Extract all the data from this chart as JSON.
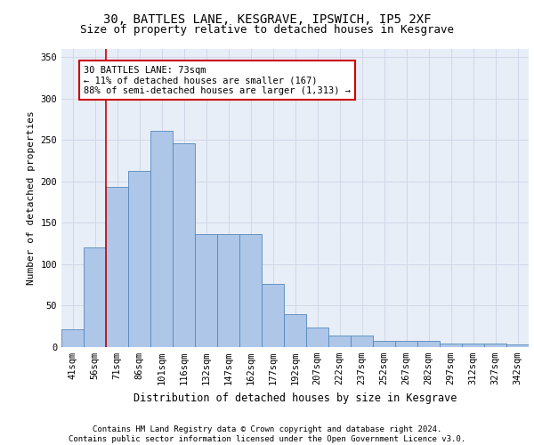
{
  "title1": "30, BATTLES LANE, KESGRAVE, IPSWICH, IP5 2XF",
  "title2": "Size of property relative to detached houses in Kesgrave",
  "xlabel": "Distribution of detached houses by size in Kesgrave",
  "ylabel": "Number of detached properties",
  "categories": [
    "41sqm",
    "56sqm",
    "71sqm",
    "86sqm",
    "101sqm",
    "116sqm",
    "132sqm",
    "147sqm",
    "162sqm",
    "177sqm",
    "192sqm",
    "207sqm",
    "222sqm",
    "237sqm",
    "252sqm",
    "267sqm",
    "282sqm",
    "297sqm",
    "312sqm",
    "327sqm",
    "342sqm"
  ],
  "values": [
    22,
    120,
    193,
    213,
    261,
    246,
    136,
    136,
    136,
    76,
    40,
    24,
    14,
    14,
    8,
    7,
    7,
    4,
    4,
    4,
    3
  ],
  "bar_color": "#aec6e8",
  "bar_edge_color": "#5588bb",
  "annotation_box_text": "30 BATTLES LANE: 73sqm\n← 11% of detached houses are smaller (167)\n88% of semi-detached houses are larger (1,313) →",
  "annotation_box_color": "#ffffff",
  "annotation_box_edge_color": "#cc0000",
  "vline_color": "#cc0000",
  "ylim": [
    0,
    360
  ],
  "yticks": [
    0,
    50,
    100,
    150,
    200,
    250,
    300,
    350
  ],
  "grid_color": "#d0d8e8",
  "background_color": "#e8eef7",
  "footer_text": "Contains HM Land Registry data © Crown copyright and database right 2024.\nContains public sector information licensed under the Open Government Licence v3.0.",
  "title1_fontsize": 10,
  "title2_fontsize": 9,
  "xlabel_fontsize": 8.5,
  "ylabel_fontsize": 8,
  "tick_fontsize": 7.5,
  "annot_fontsize": 7.5,
  "footer_fontsize": 6.5
}
